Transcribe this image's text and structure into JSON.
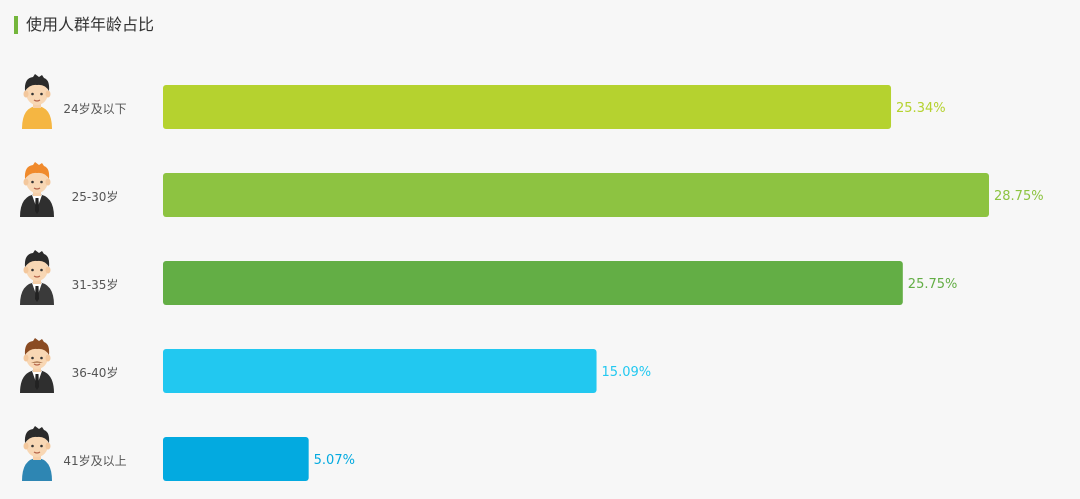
{
  "chart_data": {
    "type": "bar",
    "orientation": "horizontal",
    "title": "使用人群年龄占比",
    "categories": [
      "24岁及以下",
      "25-30岁",
      "31-35岁",
      "36-40岁",
      "41岁及以上"
    ],
    "values": [
      25.34,
      28.75,
      25.75,
      15.09,
      5.07
    ],
    "value_labels": [
      "25.34%",
      "28.75%",
      "25.75%",
      "15.09%",
      "5.07%"
    ],
    "colors": [
      "#b5d22f",
      "#8dc341",
      "#63ae45",
      "#22c8f0",
      "#03aae0"
    ],
    "avatars": [
      "young-man-orange-shirt-icon",
      "man-orange-hair-suit-icon",
      "man-dark-hair-suit-icon",
      "man-mustache-suit-icon",
      "man-blue-shirt-icon"
    ],
    "xlim": [
      0,
      29
    ],
    "grid": false,
    "legend": "none"
  }
}
